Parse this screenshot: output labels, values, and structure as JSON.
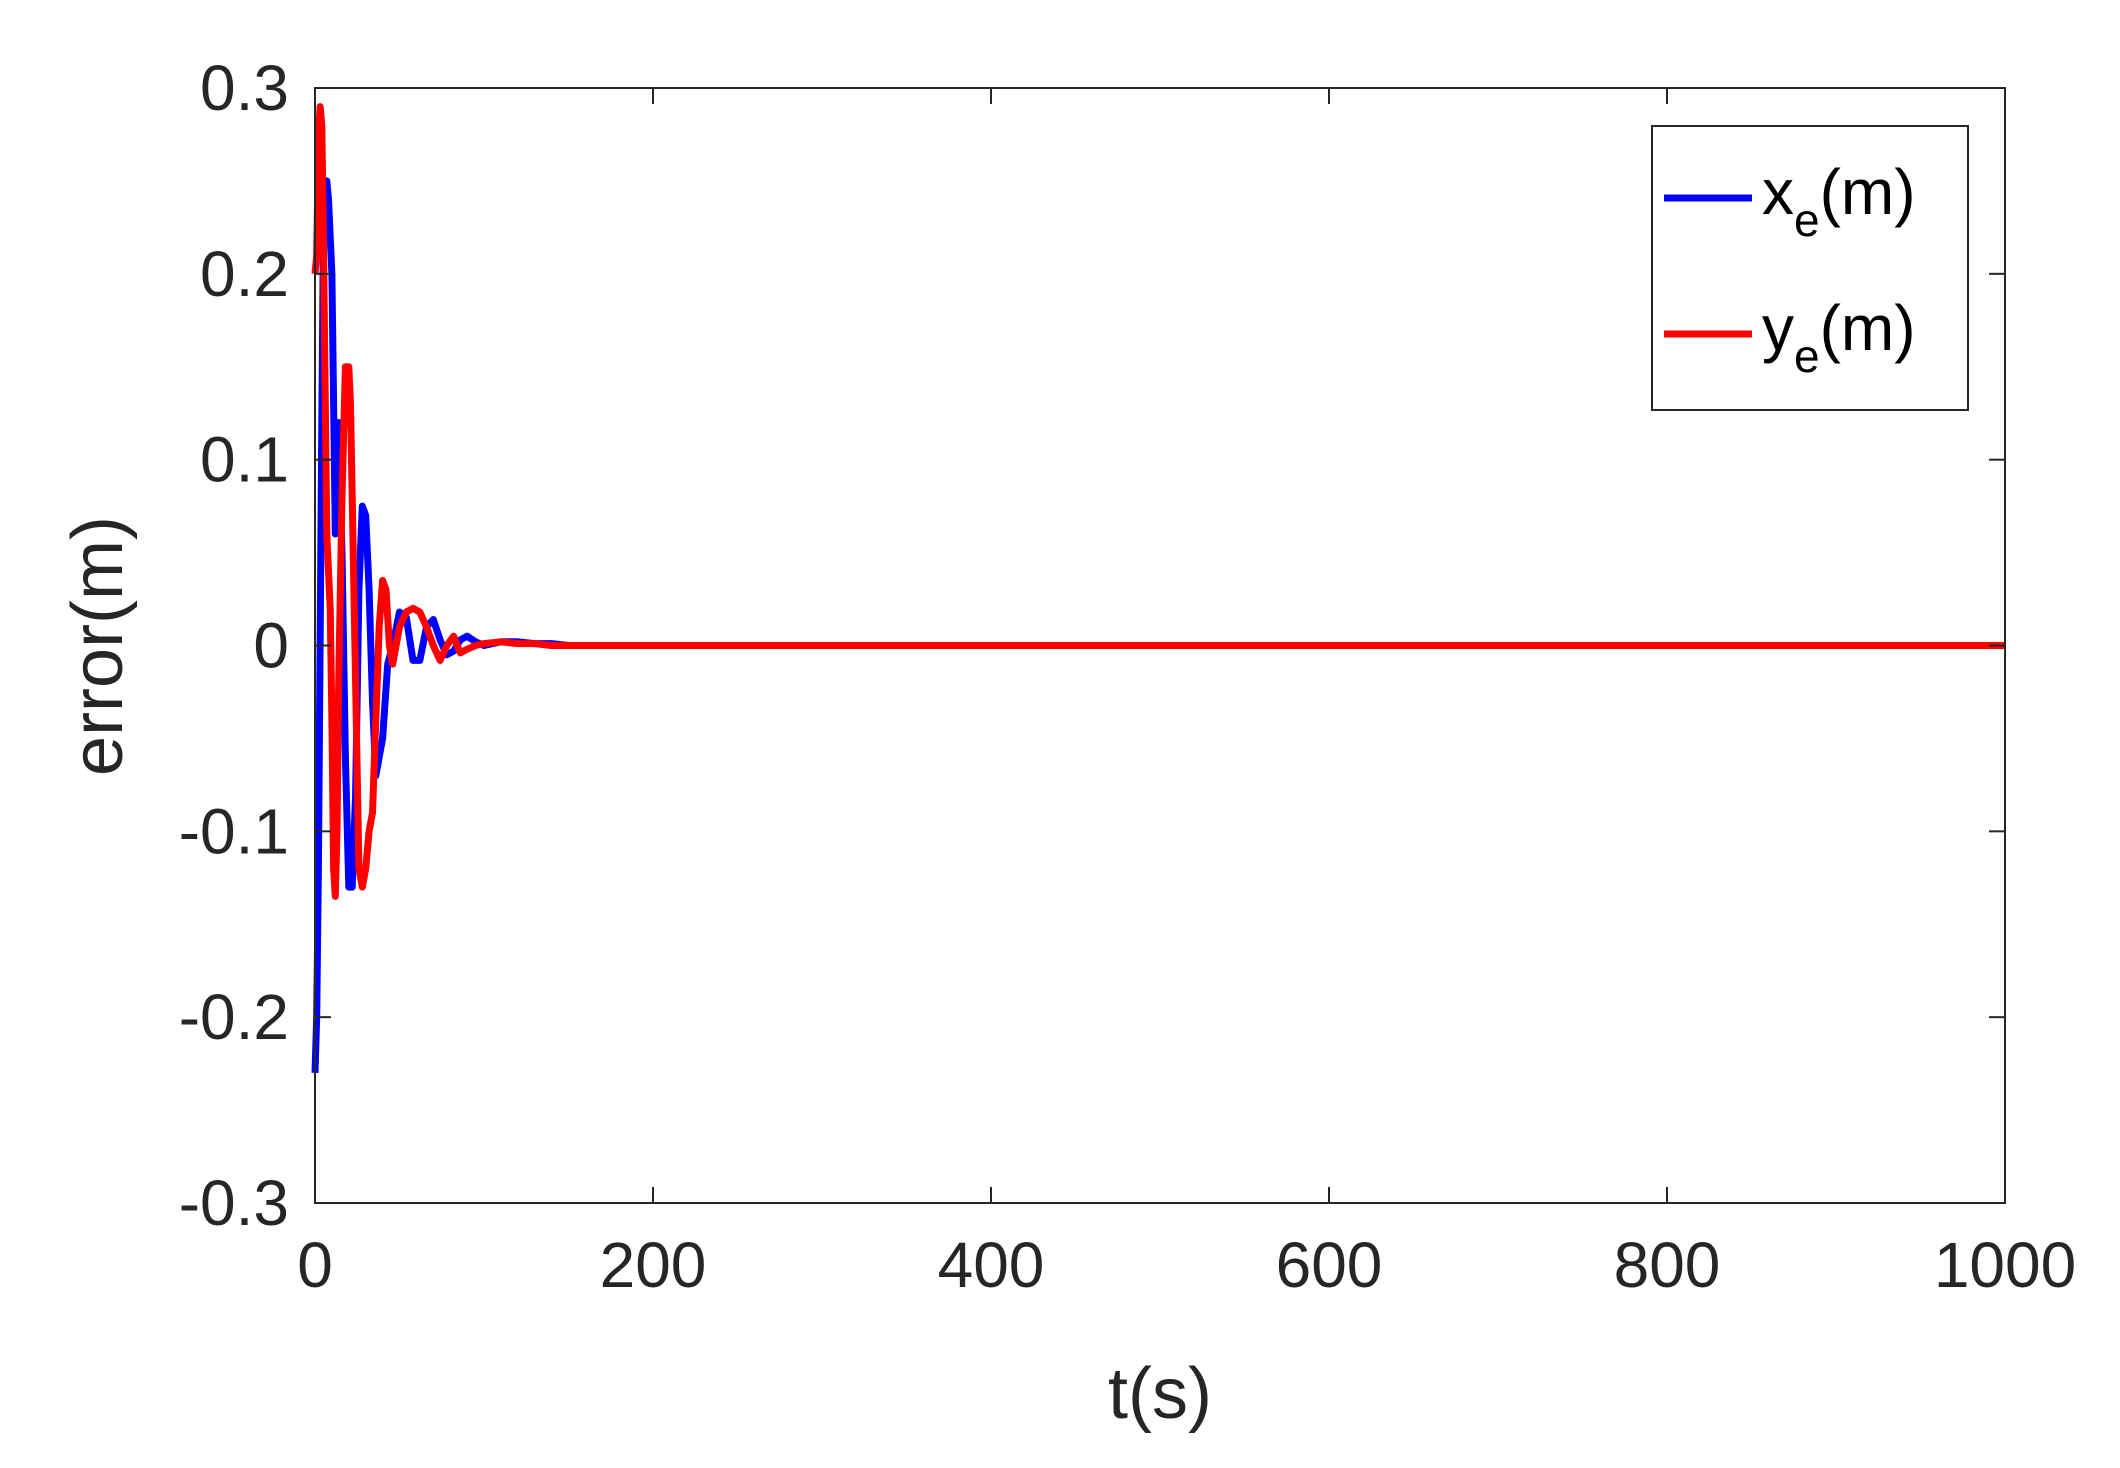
{
  "chart_data": {
    "type": "line",
    "xlabel": "t(s)",
    "ylabel": "error(m)",
    "xlim": [
      0,
      1000
    ],
    "ylim": [
      -0.3,
      0.3
    ],
    "xticks": [
      0,
      200,
      400,
      600,
      800,
      1000
    ],
    "yticks": [
      -0.3,
      -0.2,
      -0.1,
      0,
      0.1,
      0.2,
      0.3
    ],
    "xtick_labels": [
      "0",
      "200",
      "400",
      "600",
      "800",
      "1000"
    ],
    "ytick_labels": [
      "-0.3",
      "-0.2",
      "-0.1",
      "0",
      "0.1",
      "0.2",
      "0.3"
    ],
    "grid": false,
    "legend_position": "top-right",
    "series": [
      {
        "name": "x",
        "name_subscript": "e",
        "name_suffix": "(m)",
        "color": "#0000ff",
        "x": [
          0,
          1,
          2,
          3,
          4,
          5,
          6,
          7,
          8,
          10,
          12,
          14,
          16,
          18,
          20,
          22,
          24,
          26,
          28,
          30,
          32,
          34,
          36,
          38,
          40,
          43,
          46,
          50,
          54,
          58,
          62,
          66,
          70,
          74,
          78,
          82,
          86,
          90,
          95,
          100,
          110,
          120,
          130,
          140,
          150,
          160,
          170,
          200,
          400,
          600,
          800,
          1000
        ],
        "values": [
          -0.23,
          -0.2,
          -0.12,
          0.0,
          0.12,
          0.22,
          0.25,
          0.25,
          0.24,
          0.2,
          0.06,
          0.12,
          0.05,
          -0.06,
          -0.13,
          -0.13,
          -0.08,
          0.03,
          0.075,
          0.07,
          0.03,
          -0.03,
          -0.07,
          -0.06,
          -0.05,
          -0.01,
          0.0,
          0.018,
          0.015,
          -0.008,
          -0.008,
          0.01,
          0.014,
          0.003,
          -0.005,
          -0.003,
          0.003,
          0.005,
          0.002,
          0.0,
          0.002,
          0.002,
          0.001,
          0.001,
          0.0,
          0.0,
          0.0,
          0.0,
          0.0,
          0.0,
          0.0,
          0.0
        ]
      },
      {
        "name": "y",
        "name_subscript": "e",
        "name_suffix": "(m)",
        "color": "#ff0000",
        "x": [
          0,
          1,
          2,
          3,
          4,
          5,
          6,
          7,
          8,
          9,
          10,
          11,
          12,
          13,
          14,
          16,
          18,
          20,
          21,
          22,
          24,
          26,
          28,
          30,
          32,
          34,
          36,
          38,
          40,
          42,
          44,
          46,
          48,
          50,
          54,
          58,
          62,
          66,
          70,
          74,
          78,
          82,
          86,
          90,
          95,
          100,
          110,
          120,
          130,
          140,
          150,
          170,
          200,
          400,
          600,
          800,
          1000
        ],
        "values": [
          0.2,
          0.21,
          0.27,
          0.29,
          0.28,
          0.22,
          0.14,
          0.06,
          0.04,
          0.02,
          -0.04,
          -0.12,
          -0.135,
          -0.1,
          -0.02,
          0.08,
          0.15,
          0.15,
          0.13,
          0.08,
          -0.02,
          -0.12,
          -0.13,
          -0.12,
          -0.1,
          -0.09,
          -0.04,
          0.01,
          0.035,
          0.03,
          0.0,
          -0.01,
          0.0,
          0.01,
          0.018,
          0.02,
          0.018,
          0.01,
          0.0,
          -0.008,
          0.0,
          0.005,
          -0.004,
          -0.002,
          0.0,
          0.001,
          0.002,
          0.001,
          0.001,
          0.0,
          0.0,
          0.0,
          0.0,
          0.0,
          0.0,
          0.0,
          0.0
        ]
      }
    ]
  }
}
